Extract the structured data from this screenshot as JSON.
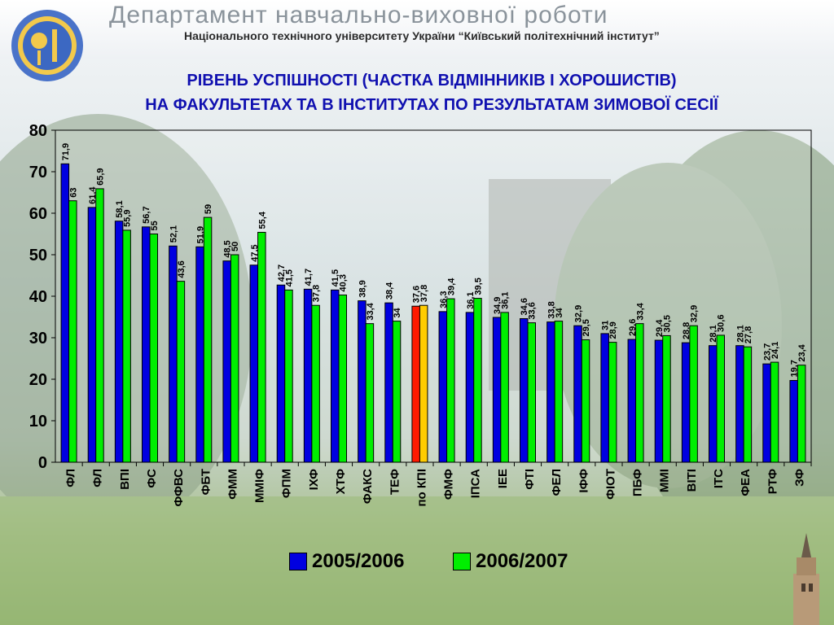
{
  "header": {
    "department_title": "Департамент навчально-виховної роботи",
    "subtitle": "Національного технічного університету України “Київський політехнічний інститут”"
  },
  "slide": {
    "title_line1": "РІВЕНЬ УСПІШНОСТІ (ЧАСТКА ВІДМІННИКІВ І ХОРОШИСТІВ)",
    "title_line2": "НА ФАКУЛЬТЕТАХ ТА В ІНСТИТУТАХ ПО РЕЗУЛЬТАТАМ ЗИМОВОЇ СЕСІЇ"
  },
  "colors": {
    "series1": "#0000e0",
    "series2": "#00ee00",
    "highlight1": "#ff1a00",
    "highlight2": "#ffcc00",
    "title": "#1010b0"
  },
  "chart_data": {
    "type": "bar",
    "title": "",
    "xlabel": "",
    "ylabel": "",
    "ylim": [
      0,
      80
    ],
    "yticks": [
      0,
      10,
      20,
      30,
      40,
      50,
      60,
      70,
      80
    ],
    "grid": false,
    "legend_position": "bottom",
    "highlight_category": "по КПІ",
    "categories": [
      "ФЛ",
      "ФЛ",
      "ВПІ",
      "ФС",
      "ФФВС",
      "ФБТ",
      "ФММ",
      "ММІФ",
      "ФПМ",
      "ІХФ",
      "ХТФ",
      "ФАКС",
      "ТЕФ",
      "по КПІ",
      "ФМФ",
      "ІПСА",
      "ІЕЕ",
      "ФТІ",
      "ФЕЛ",
      "ІФФ",
      "ФІОТ",
      "ПБФ",
      "ММІ",
      "ВІТІ",
      "ІТС",
      "ФЕА",
      "РТФ",
      "ЗФ"
    ],
    "series": [
      {
        "name": "2005/2006",
        "values": [
          71.9,
          61.4,
          58.1,
          56.7,
          52.1,
          51.9,
          48.5,
          47.5,
          42.7,
          41.7,
          41.5,
          38.9,
          38.4,
          37.6,
          36.3,
          36.1,
          34.9,
          34.6,
          33.8,
          32.9,
          31,
          29.6,
          29.4,
          28.8,
          28.1,
          28.1,
          23.7,
          19.7
        ]
      },
      {
        "name": "2006/2007",
        "values": [
          63,
          65.9,
          55.9,
          55,
          43.6,
          59,
          50,
          55.4,
          41.5,
          37.8,
          40.3,
          33.4,
          34,
          37.8,
          39.4,
          39.5,
          36.1,
          33.6,
          34,
          29.5,
          28.9,
          33.4,
          30.5,
          32.9,
          30.6,
          27.8,
          24.1,
          23.4
        ]
      }
    ],
    "value_labels": [
      [
        "71,9",
        "61,4",
        "58,1",
        "56,7",
        "52,1",
        "51,9",
        "48,5",
        "47,5",
        "42,7",
        "41,7",
        "41,5",
        "38,9",
        "38,4",
        "37,6",
        "36,3",
        "36,1",
        "34,9",
        "34,6",
        "33,8",
        "32,9",
        "31",
        "29,6",
        "29,4",
        "28,8",
        "28,1",
        "28,1",
        "23,7",
        "19,7"
      ],
      [
        "63",
        "65,9",
        "55,9",
        "55",
        "43,6",
        "59",
        "50",
        "55,4",
        "41,5",
        "37,8",
        "40,3",
        "33,4",
        "34",
        "37,8",
        "39,4",
        "39,5",
        "36,1",
        "33,6",
        "34",
        "29,5",
        "28,9",
        "33,4",
        "30,5",
        "32,9",
        "30,6",
        "27,8",
        "24,1",
        "23,4"
      ]
    ]
  },
  "legend": {
    "items": [
      "2005/2006",
      "2006/2007"
    ]
  }
}
